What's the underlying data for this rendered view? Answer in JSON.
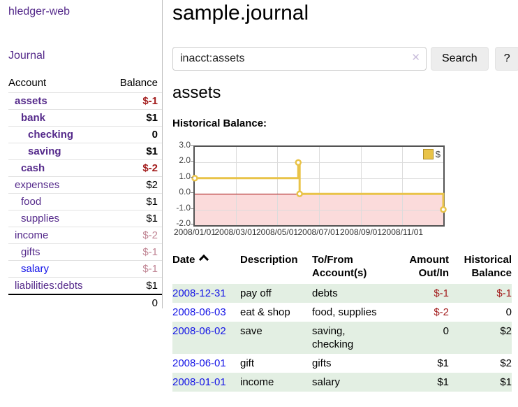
{
  "app": {
    "title": "hledger-web"
  },
  "nav": {
    "journal": "Journal"
  },
  "sidebar": {
    "header": {
      "account": "Account",
      "balance": "Balance"
    },
    "accounts": [
      {
        "name": "assets",
        "balance": "$-1",
        "depth": 1,
        "bold": true,
        "negative": "strong"
      },
      {
        "name": "bank",
        "balance": "$1",
        "depth": 2,
        "bold": true
      },
      {
        "name": "checking",
        "balance": "0",
        "depth": 3,
        "bold": true
      },
      {
        "name": "saving",
        "balance": "$1",
        "depth": 3,
        "bold": true
      },
      {
        "name": "cash",
        "balance": "$-2",
        "depth": 2,
        "bold": true,
        "negative": "strong"
      },
      {
        "name": "expenses",
        "balance": "$2",
        "depth": 1
      },
      {
        "name": "food",
        "balance": "$1",
        "depth": 2
      },
      {
        "name": "supplies",
        "balance": "$1",
        "depth": 2
      },
      {
        "name": "income",
        "balance": "$-2",
        "depth": 1,
        "negative": "dim"
      },
      {
        "name": "gifts",
        "balance": "$-1",
        "depth": 2,
        "negative": "dim"
      },
      {
        "name": "salary",
        "balance": "$-1",
        "depth": 2,
        "negative": "dim",
        "link_color": "blue"
      },
      {
        "name": "liabilities:debts",
        "balance": "$1",
        "depth": 1
      }
    ],
    "total": "0"
  },
  "main": {
    "title": "sample.journal",
    "account_title": "assets",
    "chart_label": "Historical Balance:"
  },
  "search": {
    "value": "inacct:assets",
    "clear_icon": "✕",
    "search_button": "Search",
    "help_button": "?"
  },
  "chart_data": {
    "type": "line",
    "line_style": "step-after",
    "title": "Historical Balance",
    "series": [
      {
        "name": "$",
        "color": "#e9c348",
        "points": [
          [
            "2008-01-01",
            1
          ],
          [
            "2008-06-01",
            2
          ],
          [
            "2008-06-03",
            0
          ],
          [
            "2008-12-31",
            -1
          ]
        ]
      }
    ],
    "x_range": [
      "2008-01-01",
      "2008-12-31"
    ],
    "x_ticks": [
      "2008/01/01",
      "2008/03/01",
      "2008/05/01",
      "2008/07/01",
      "2008/09/01",
      "2008/11/01"
    ],
    "y_ticks": [
      3.0,
      2.0,
      1.0,
      0.0,
      -1.0,
      -2.0
    ],
    "y_tick_labels": [
      "3.0",
      "2.0",
      "1.0",
      "0.0",
      "-1.0",
      "-2.0"
    ],
    "ylim": [
      -2,
      3
    ],
    "grid": true,
    "negative_region_shaded": true,
    "legend": {
      "label": "$",
      "position": "top-right"
    }
  },
  "register": {
    "columns": [
      {
        "label": "Date",
        "sorted": "asc"
      },
      {
        "label": "Description"
      },
      {
        "label": "To/From Account(s)"
      },
      {
        "label": "Amount Out/In",
        "align": "right"
      },
      {
        "label": "Historical Balance",
        "align": "right"
      }
    ],
    "rows": [
      {
        "date": "2008-12-31",
        "description": "pay off",
        "accounts": "debts",
        "amount": "$-1",
        "balance": "$-1",
        "amount_negative": true,
        "balance_negative": true,
        "shaded": true
      },
      {
        "date": "2008-06-03",
        "description": "eat & shop",
        "accounts": "food, supplies",
        "amount": "$-2",
        "balance": "0",
        "amount_negative": true,
        "balance_negative": false,
        "shaded": false
      },
      {
        "date": "2008-06-02",
        "description": "save",
        "accounts": "saving, checking",
        "amount": "0",
        "balance": "$2",
        "amount_negative": false,
        "balance_negative": false,
        "shaded": true
      },
      {
        "date": "2008-06-01",
        "description": "gift",
        "accounts": "gifts",
        "amount": "$1",
        "balance": "$2",
        "amount_negative": false,
        "balance_negative": false,
        "shaded": false
      },
      {
        "date": "2008-01-01",
        "description": "income",
        "accounts": "salary",
        "amount": "$1",
        "balance": "$1",
        "amount_negative": false,
        "balance_negative": false,
        "shaded": true
      }
    ]
  },
  "colors": {
    "link_purple": "#552a8b",
    "link_blue": "#0f0fe8",
    "negative_strong": "#a31d1d",
    "negative_dim": "#c08594",
    "row_shade_green": "#e3efe3",
    "chart_series_yellow": "#e9c348",
    "chart_negative_fill": "#fbdbdb",
    "chart_zero_line": "#a00000",
    "chart_border": "#545454"
  }
}
